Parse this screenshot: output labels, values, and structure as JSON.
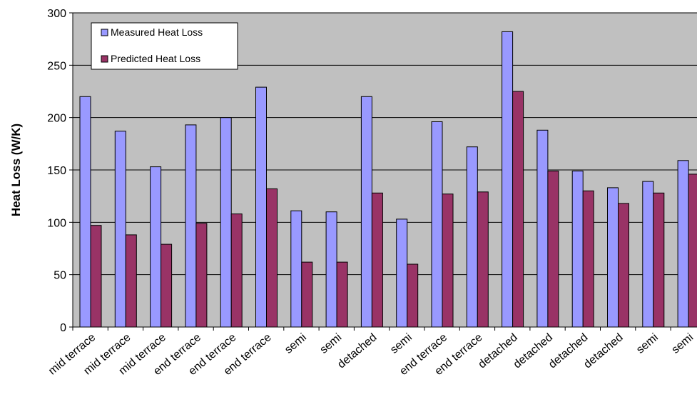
{
  "chart_data": {
    "type": "bar",
    "title": "",
    "xlabel": "",
    "ylabel": "Heat Loss (W/K)",
    "ylim": [
      0,
      300
    ],
    "yticks": [
      0,
      50,
      100,
      150,
      200,
      250,
      300
    ],
    "grid": true,
    "legend_position": "top-left",
    "plot_background": "#c0c0c0",
    "categories": [
      "mid terrace",
      "mid terrace",
      "mid terrace",
      "end terrace",
      "end terrace",
      "end terrace",
      "semi",
      "semi",
      "detached",
      "semi",
      "end terrace",
      "end terrace",
      "detached",
      "detached",
      "detached",
      "detached",
      "semi",
      "semi"
    ],
    "series": [
      {
        "name": "Measured Heat Loss",
        "color": "#9999ff",
        "values": [
          220,
          187,
          153,
          193,
          200,
          229,
          111,
          110,
          220,
          103,
          196,
          172,
          282,
          188,
          149,
          133,
          139,
          159
        ]
      },
      {
        "name": "Predicted Heat Loss",
        "color": "#993366",
        "values": [
          97,
          88,
          79,
          99,
          108,
          132,
          62,
          62,
          128,
          60,
          127,
          129,
          225,
          149,
          130,
          118,
          128,
          146
        ]
      }
    ]
  }
}
